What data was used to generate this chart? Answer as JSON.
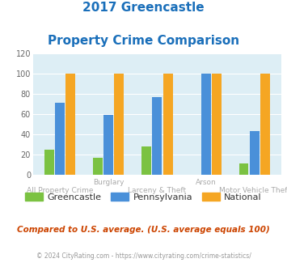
{
  "title_line1": "2017 Greencastle",
  "title_line2": "Property Crime Comparison",
  "x_labels_top": [
    "",
    "Burglary",
    "",
    "Arson",
    ""
  ],
  "x_labels_bottom": [
    "All Property Crime",
    "",
    "Larceny & Theft",
    "",
    "Motor Vehicle Theft"
  ],
  "greencastle": [
    25,
    17,
    28,
    0,
    11
  ],
  "pennsylvania": [
    71,
    59,
    77,
    100,
    43
  ],
  "national": [
    100,
    100,
    100,
    100,
    100
  ],
  "bar_colors": {
    "greencastle": "#7bc242",
    "pennsylvania": "#4a90d9",
    "national": "#f5a623"
  },
  "ylim": [
    0,
    120
  ],
  "yticks": [
    0,
    20,
    40,
    60,
    80,
    100,
    120
  ],
  "title_color": "#1a6fba",
  "plot_bg": "#ddeef5",
  "fig_bg": "#ffffff",
  "footnote": "Compared to U.S. average. (U.S. average equals 100)",
  "copyright": "© 2024 CityRating.com - https://www.cityrating.com/crime-statistics/",
  "footnote_color": "#cc4400",
  "copyright_color": "#999999",
  "legend_labels": [
    "Greencastle",
    "Pennsylvania",
    "National"
  ]
}
